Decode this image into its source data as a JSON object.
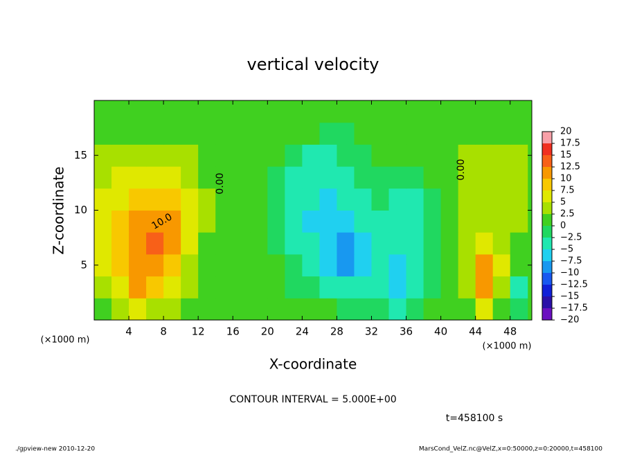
{
  "chart_data": {
    "type": "heatmap",
    "title": "vertical velocity",
    "x_label": "X-coordinate",
    "y_label": "Z-coordinate",
    "x_unit": "(×1000 m)",
    "y_unit": "(×1000 m)",
    "contour_interval": "CONTOUR INTERVAL = 5.000E+00",
    "time_label": "t=458100 s",
    "footer_left": "./gpview-new  2010-12-20",
    "footer_right": "MarsCond_VelZ.nc@VelZ,x=0:50000,z=0:20000,t=458100",
    "xlim": [
      0,
      50.5
    ],
    "ylim": [
      0,
      20
    ],
    "xticks": [
      4,
      8,
      12,
      16,
      20,
      24,
      28,
      32,
      36,
      40,
      44,
      48
    ],
    "yticks": [
      5,
      10,
      15
    ],
    "x": [
      1,
      3,
      5,
      7,
      9,
      11,
      13,
      15,
      17,
      19,
      21,
      23,
      25,
      27,
      29,
      31,
      33,
      35,
      37,
      39,
      41,
      43,
      45,
      47,
      49
    ],
    "z": [
      1,
      3,
      5,
      7,
      9,
      11,
      13,
      15,
      17,
      19
    ],
    "values": [
      [
        2,
        3,
        5,
        4,
        3,
        2,
        1,
        0.5,
        1,
        1,
        0.5,
        0,
        0,
        0,
        -0.5,
        -1,
        -2,
        -3,
        -1,
        0,
        0.5,
        2,
        6,
        2,
        -1
      ],
      [
        4,
        7,
        10,
        9,
        6,
        3,
        1.5,
        0.5,
        0.5,
        0.5,
        0,
        -1,
        -2,
        -4,
        -5,
        -5,
        -5,
        -6,
        -3,
        -1,
        0.5,
        4,
        12,
        4,
        -4
      ],
      [
        5,
        8,
        12,
        11,
        8,
        4,
        1.5,
        0.5,
        0.5,
        0.5,
        0,
        -2,
        -4,
        -6,
        -9,
        -7,
        -5,
        -6,
        -3,
        -1,
        0.5,
        4,
        10,
        5,
        0
      ],
      [
        6,
        8,
        12,
        13,
        10,
        5,
        2,
        0.5,
        0.5,
        0.5,
        -1,
        -3,
        -5,
        -7,
        -9,
        -6,
        -4,
        -5,
        -3,
        -1,
        0.5,
        3,
        6,
        4,
        2
      ],
      [
        6,
        8,
        11,
        12,
        10,
        6,
        2.5,
        0.5,
        0.5,
        0.5,
        -1,
        -3,
        -6,
        -7,
        -6,
        -4,
        -3,
        -4,
        -3,
        -1,
        0.5,
        3,
        4,
        4.5,
        4
      ],
      [
        5,
        6,
        8,
        9,
        8,
        5,
        2.5,
        0.5,
        0.5,
        0.5,
        -1,
        -3,
        -5,
        -6,
        -5,
        -3,
        -2,
        -3,
        -3,
        -1,
        0.5,
        2.5,
        3.5,
        4,
        3.5
      ],
      [
        4,
        5,
        6,
        6,
        5,
        4,
        2,
        0.5,
        0.5,
        0.5,
        -1,
        -3,
        -4,
        -4,
        -3,
        -2,
        -1,
        -1.5,
        -2,
        0,
        0.5,
        2.5,
        3,
        3.5,
        3
      ],
      [
        3,
        4,
        4,
        4,
        3.5,
        3,
        1.5,
        0.5,
        0.5,
        0.5,
        0,
        -2,
        -3,
        -3,
        -2,
        -1,
        0,
        0.5,
        0.5,
        0.5,
        0.5,
        2.5,
        2.5,
        2.5,
        2.5
      ],
      [
        2,
        2,
        2,
        2,
        2,
        2,
        1,
        0.5,
        0.5,
        0.5,
        0.5,
        0.5,
        0,
        -1,
        -0.5,
        0.5,
        0.5,
        0.5,
        0.5,
        0.5,
        0.5,
        2,
        2,
        2,
        2
      ],
      [
        1.5,
        1.5,
        1.5,
        1.5,
        1.5,
        1.5,
        1,
        0.5,
        0.5,
        0.5,
        0.5,
        0.5,
        0.5,
        0.5,
        0.5,
        0.5,
        0.5,
        0.5,
        0.5,
        0.5,
        0.5,
        1.5,
        1.5,
        1.5,
        1.5
      ]
    ],
    "colorbar": {
      "ticks": [
        {
          "value": -20,
          "label": "−20"
        },
        {
          "value": -17.5,
          "label": "−17.5"
        },
        {
          "value": -15,
          "label": "−15"
        },
        {
          "value": -12.5,
          "label": "−12.5"
        },
        {
          "value": -10,
          "label": "−10"
        },
        {
          "value": -7.5,
          "label": "−7.5"
        },
        {
          "value": -5,
          "label": "−5"
        },
        {
          "value": -2.5,
          "label": "−2.5"
        },
        0,
        2.5,
        5,
        7.5,
        10,
        12.5,
        15,
        17.5,
        20
      ],
      "colors": [
        "#6a10c0",
        "#2a10a8",
        "#1020d8",
        "#1858f0",
        "#1898f0",
        "#20d0f0",
        "#20e8b0",
        "#20d860",
        "#40d020",
        "#a8e000",
        "#e0e800",
        "#f8c800",
        "#f89800",
        "#f86018",
        "#f03020",
        "#f8a0a8"
      ]
    },
    "contour_labels": [
      {
        "value": 0,
        "label": "0.00"
      },
      {
        "value": 0,
        "label": "0.00"
      },
      {
        "value": 10,
        "label": "10.0"
      }
    ]
  }
}
